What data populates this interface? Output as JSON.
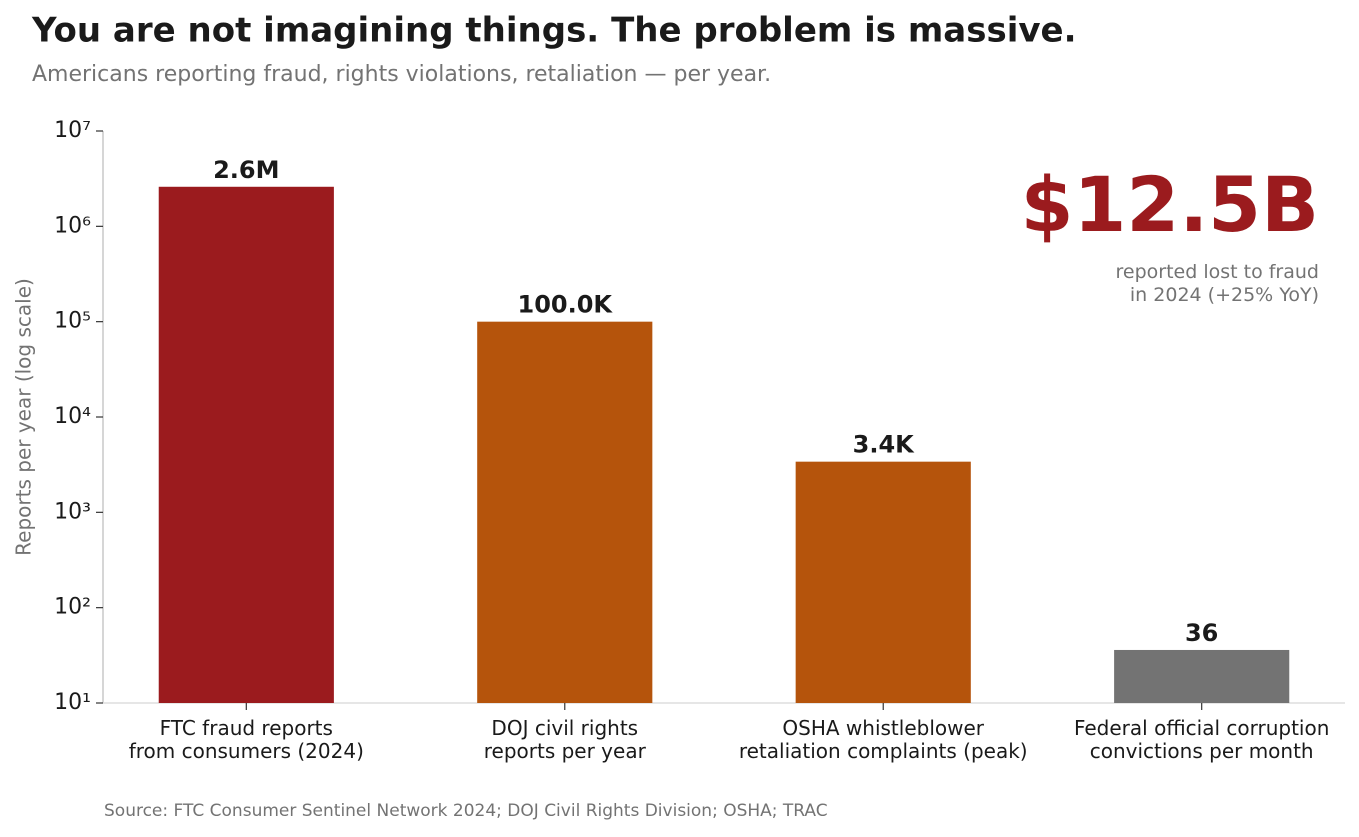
{
  "chart_data": {
    "type": "bar",
    "title": "You are not imagining things. The problem is massive.",
    "subtitle": "Americans reporting fraud, rights violations, retaliation — per year.",
    "y_label": "Reports per year (log scale)",
    "categories": [
      "FTC fraud reports\nfrom consumers (2024)",
      "DOJ civil rights\nreports per year",
      "OSHA whistleblower\nretaliation complaints (peak)",
      "Federal official corruption\nconvictions per month"
    ],
    "values": [
      2600000,
      100000,
      3400,
      36
    ],
    "value_labels": [
      "2.6M",
      "100.0K",
      "3.4K",
      "36"
    ],
    "colors": [
      "#9b1b1e",
      "#b5540c",
      "#b5540c",
      "#737373"
    ],
    "log_scale": true,
    "ylim": [
      10,
      10000000
    ],
    "yticks": [
      {
        "value": 10,
        "label": "10¹"
      },
      {
        "value": 100,
        "label": "10²"
      },
      {
        "value": 1000,
        "label": "10³"
      },
      {
        "value": 10000,
        "label": "10⁴"
      },
      {
        "value": 100000,
        "label": "10⁵"
      },
      {
        "value": 1000000,
        "label": "10⁶"
      },
      {
        "value": 10000000,
        "label": "10⁷"
      }
    ],
    "annotation": {
      "headline": "$12.5B",
      "text": "reported lost to fraud\nin 2024 (+25% YoY)"
    },
    "source": "Source: FTC Consumer Sentinel Network 2024; DOJ Civil Rights Division; OSHA; TRAC"
  }
}
